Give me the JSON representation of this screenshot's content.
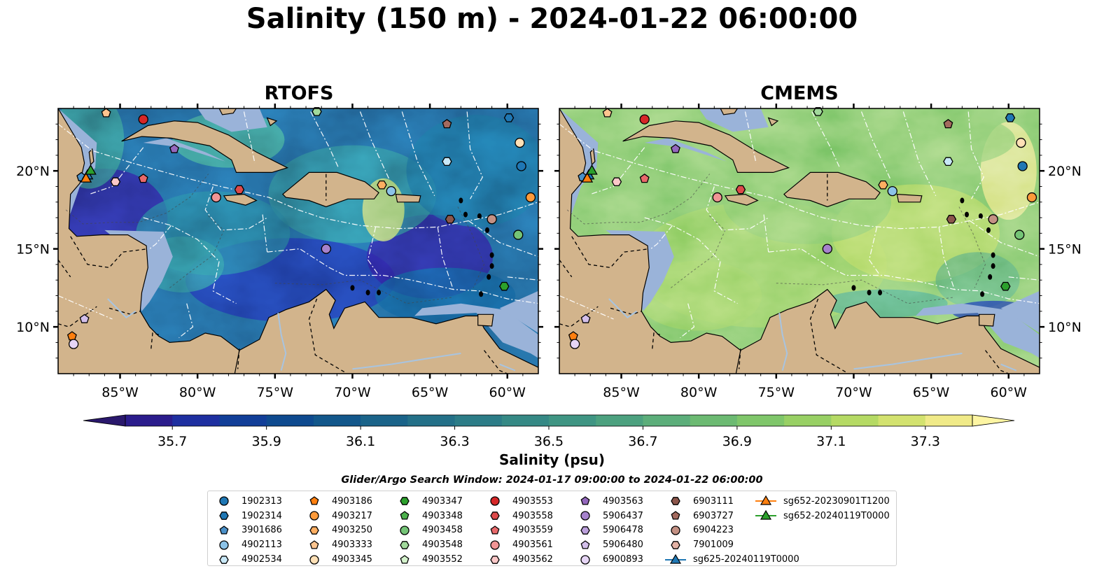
{
  "title": "Salinity (150 m) - 2024-01-22 06:00:00",
  "panels": [
    {
      "title": "RTOFS",
      "model_key": "rtofs"
    },
    {
      "title": "CMEMS",
      "model_key": "cmems"
    }
  ],
  "map_extent": {
    "lon": [
      -89,
      -58
    ],
    "lat": [
      7,
      24
    ]
  },
  "lon_ticks": [
    {
      "value": -85,
      "label": "85°W"
    },
    {
      "value": -80,
      "label": "80°W"
    },
    {
      "value": -75,
      "label": "75°W"
    },
    {
      "value": -70,
      "label": "70°W"
    },
    {
      "value": -65,
      "label": "65°W"
    },
    {
      "value": -60,
      "label": "60°W"
    }
  ],
  "lat_ticks": [
    {
      "value": 20,
      "label": "20°N"
    },
    {
      "value": 15,
      "label": "15°N"
    },
    {
      "value": 10,
      "label": "10°N"
    }
  ],
  "colorbar": {
    "label": "Salinity (psu)",
    "min": 35.6,
    "max": 37.4,
    "step": 0.1,
    "tick_labels": [
      "35.7",
      "35.9",
      "36.1",
      "36.3",
      "36.5",
      "36.7",
      "36.9",
      "37.1",
      "37.3"
    ],
    "tick_values": [
      35.7,
      35.9,
      36.1,
      36.3,
      36.5,
      36.7,
      36.9,
      37.1,
      37.3
    ],
    "colormap": "haline",
    "extend": "both"
  },
  "colors": {
    "land": "#d2b48c",
    "shelf": "#9ab3d9",
    "low_salinity": "#2a186c",
    "high_salinity": "#fdf5a3"
  },
  "legend_title": "Glider/Argo Search Window: 2024-01-17 09:00:00 to 2024-01-22 06:00:00",
  "legend": [
    {
      "label": "1902313",
      "marker": "circle",
      "color": "#1f77b4"
    },
    {
      "label": "1902314",
      "marker": "hexagon",
      "color": "#1f77b4"
    },
    {
      "label": "3901686",
      "marker": "pentagon",
      "color": "#4a90c8"
    },
    {
      "label": "4902113",
      "marker": "circle",
      "color": "#8cc3e8"
    },
    {
      "label": "4902534",
      "marker": "hexagon",
      "color": "#c8e8f7"
    },
    {
      "label": "4903186",
      "marker": "pentagon",
      "color": "#ff7f0e"
    },
    {
      "label": "4903217",
      "marker": "circle",
      "color": "#fd9a3a"
    },
    {
      "label": "4903250",
      "marker": "hexagon",
      "color": "#fdae61"
    },
    {
      "label": "4903333",
      "marker": "pentagon",
      "color": "#fdc58f"
    },
    {
      "label": "4903345",
      "marker": "circle",
      "color": "#fee0b6"
    },
    {
      "label": "4903347",
      "marker": "hexagon",
      "color": "#2ca02c"
    },
    {
      "label": "4903348",
      "marker": "pentagon",
      "color": "#4cb04c"
    },
    {
      "label": "4903458",
      "marker": "circle",
      "color": "#74c476"
    },
    {
      "label": "4903548",
      "marker": "hexagon",
      "color": "#a1d99b"
    },
    {
      "label": "4903552",
      "marker": "pentagon",
      "color": "#d4f2cc"
    },
    {
      "label": "4903553",
      "marker": "circle",
      "color": "#d62728"
    },
    {
      "label": "4903558",
      "marker": "hexagon",
      "color": "#dd4a4a"
    },
    {
      "label": "4903559",
      "marker": "pentagon",
      "color": "#e8696b"
    },
    {
      "label": "4903561",
      "marker": "circle",
      "color": "#f19595"
    },
    {
      "label": "4903562",
      "marker": "hexagon",
      "color": "#fbc8c8"
    },
    {
      "label": "4903563",
      "marker": "pentagon",
      "color": "#9467bd"
    },
    {
      "label": "5906437",
      "marker": "circle",
      "color": "#a682cc"
    },
    {
      "label": "5906478",
      "marker": "hexagon",
      "color": "#bca0dc"
    },
    {
      "label": "5906480",
      "marker": "pentagon",
      "color": "#d3bfea"
    },
    {
      "label": "6900893",
      "marker": "circle",
      "color": "#e6d5f5"
    },
    {
      "label": "6903111",
      "marker": "hexagon",
      "color": "#8c564b"
    },
    {
      "label": "6903727",
      "marker": "pentagon",
      "color": "#a36a5e"
    },
    {
      "label": "6904223",
      "marker": "circle",
      "color": "#c49184"
    },
    {
      "label": "7901009",
      "marker": "hexagon",
      "color": "#e3b2a5"
    },
    {
      "label": "sg625-20240119T0000",
      "marker": "triangle-line",
      "color": "#1f77b4"
    },
    {
      "label": "sg652-20230901T1200",
      "marker": "triangle-line",
      "color": "#ff7f0e"
    },
    {
      "label": "sg652-20240119T0000",
      "marker": "triangle-line",
      "color": "#2ca02c"
    }
  ],
  "points": [
    {
      "id": "1902313",
      "lon": -59.1,
      "lat": 20.3
    },
    {
      "id": "1902314",
      "lon": -59.9,
      "lat": 23.4
    },
    {
      "id": "3901686",
      "lon": -87.5,
      "lat": 19.6
    },
    {
      "id": "4902113",
      "lon": -67.5,
      "lat": 18.7
    },
    {
      "id": "4902534",
      "lon": -63.9,
      "lat": 20.6
    },
    {
      "id": "4903186",
      "lon": -88.1,
      "lat": 9.4
    },
    {
      "id": "4903217",
      "lon": -58.5,
      "lat": 18.3
    },
    {
      "id": "4903250",
      "lon": -68.1,
      "lat": 19.1
    },
    {
      "id": "4903333",
      "lon": -85.9,
      "lat": 23.7
    },
    {
      "id": "4903345",
      "lon": -59.2,
      "lat": 21.8
    },
    {
      "id": "4903347",
      "lon": -60.2,
      "lat": 12.6
    },
    {
      "id": "4903458",
      "lon": -59.3,
      "lat": 15.9
    },
    {
      "id": "4903548",
      "lon": -72.3,
      "lat": 23.8
    },
    {
      "id": "4903553",
      "lon": -83.5,
      "lat": 23.3
    },
    {
      "id": "4903558",
      "lon": -77.3,
      "lat": 18.8
    },
    {
      "id": "4903559",
      "lon": -83.5,
      "lat": 19.5
    },
    {
      "id": "4903561",
      "lon": -78.8,
      "lat": 18.3
    },
    {
      "id": "4903562",
      "lon": -85.3,
      "lat": 19.3
    },
    {
      "id": "4903563",
      "lon": -81.5,
      "lat": 21.4
    },
    {
      "id": "5906437",
      "lon": -71.7,
      "lat": 15.0
    },
    {
      "id": "5906480",
      "lon": -87.3,
      "lat": 10.5
    },
    {
      "id": "6900893",
      "lon": -88.0,
      "lat": 8.9
    },
    {
      "id": "6903111",
      "lon": -63.7,
      "lat": 16.9
    },
    {
      "id": "6903727",
      "lon": -63.9,
      "lat": 23.0
    },
    {
      "id": "6904223",
      "lon": -61.0,
      "lat": 16.9
    },
    {
      "id": "sg625-20240119T0000",
      "lon": -87.1,
      "lat": 19.7
    },
    {
      "id": "sg652-20230901T1200",
      "lon": -87.2,
      "lat": 19.5
    },
    {
      "id": "sg652-20240119T0000",
      "lon": -86.9,
      "lat": 20.0
    }
  ]
}
